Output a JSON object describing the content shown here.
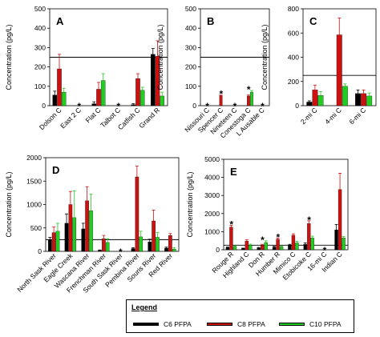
{
  "chart_data": [
    {
      "panel_label": "A",
      "type": "bar",
      "ylabel": "Concentration (pg/L)",
      "ylim": [
        0,
        500
      ],
      "yticks": [
        0,
        100,
        200,
        300,
        400,
        500
      ],
      "reference_line": 250,
      "categories": [
        "Dolson C",
        "East 2 C",
        "Flat C",
        "Talbot C",
        "Catfish C",
        "Grand R"
      ],
      "series": [
        {
          "name": "C6 PFPA",
          "color": "#000000",
          "values": [
            55,
            null,
            10,
            null,
            5,
            265
          ],
          "errors": [
            20,
            null,
            10,
            null,
            5,
            30
          ]
        },
        {
          "name": "C8 PFPA",
          "color": "#cc1111",
          "values": [
            190,
            null,
            85,
            null,
            140,
            255
          ],
          "errors": [
            75,
            null,
            35,
            null,
            25,
            80
          ]
        },
        {
          "name": "C10 PFPA",
          "color": "#22cc22",
          "values": [
            70,
            null,
            130,
            null,
            80,
            50
          ],
          "errors": [
            20,
            null,
            35,
            null,
            15,
            20
          ]
        }
      ],
      "asterisks": [
        "East 2 C",
        "Talbot C"
      ]
    },
    {
      "panel_label": "B",
      "type": "bar",
      "ylabel": "Concentration (pg/L)",
      "ylim": [
        0,
        500
      ],
      "yticks": [
        0,
        100,
        200,
        300,
        400,
        500
      ],
      "reference_line": 250,
      "categories": [
        "Nissouri C",
        "Spencer C",
        "Nineteen C",
        "Conestoga C",
        "L Ausable C"
      ],
      "series": [
        {
          "name": "C6 PFPA",
          "color": "#000000",
          "values": [
            null,
            0,
            null,
            0,
            null
          ],
          "errors": [
            null,
            0,
            null,
            0,
            null
          ]
        },
        {
          "name": "C8 PFPA",
          "color": "#cc1111",
          "values": [
            null,
            55,
            null,
            50,
            null
          ],
          "errors": [
            null,
            0,
            null,
            5,
            null
          ]
        },
        {
          "name": "C10 PFPA",
          "color": "#22cc22",
          "values": [
            null,
            0,
            null,
            70,
            null
          ],
          "errors": [
            null,
            0,
            null,
            8,
            null
          ]
        }
      ],
      "asterisks": [
        "Nissouri C",
        "Spencer C",
        "Nineteen C",
        "Conestoga C",
        "L Ausable C"
      ]
    },
    {
      "panel_label": "C",
      "type": "bar",
      "ylabel": "Concentration (pg/L)",
      "ylim": [
        0,
        800
      ],
      "yticks": [
        0,
        200,
        400,
        600,
        800
      ],
      "reference_line": 250,
      "categories": [
        "2-mi C",
        "4-mi C",
        "6-mi C"
      ],
      "series": [
        {
          "name": "C6 PFPA",
          "color": "#000000",
          "values": [
            30,
            0,
            100
          ],
          "errors": [
            10,
            0,
            30
          ]
        },
        {
          "name": "C8 PFPA",
          "color": "#cc1111",
          "values": [
            130,
            585,
            100
          ],
          "errors": [
            40,
            140,
            30
          ]
        },
        {
          "name": "C10 PFPA",
          "color": "#22cc22",
          "values": [
            85,
            160,
            80
          ],
          "errors": [
            30,
            20,
            25
          ]
        }
      ],
      "asterisks": []
    },
    {
      "panel_label": "D",
      "type": "bar",
      "ylabel": "Concentration (pg/L)",
      "ylim": [
        0,
        2000
      ],
      "yticks": [
        0,
        500,
        1000,
        1500,
        2000
      ],
      "reference_line": 250,
      "categories": [
        "North Sask River",
        "Eagle Creek",
        "Wascana River",
        "Frenchman River",
        "South Sask River",
        "Pembina River",
        "Souris River",
        "Red River"
      ],
      "series": [
        {
          "name": "C6 PFPA",
          "color": "#000000",
          "values": [
            240,
            600,
            480,
            20,
            null,
            60,
            200,
            70
          ],
          "errors": [
            60,
            200,
            120,
            10,
            null,
            20,
            60,
            20
          ]
        },
        {
          "name": "C8 PFPA",
          "color": "#cc1111",
          "values": [
            400,
            1000,
            1080,
            270,
            null,
            1590,
            650,
            340
          ],
          "errors": [
            120,
            280,
            300,
            70,
            null,
            230,
            230,
            40
          ]
        },
        {
          "name": "C10 PFPA",
          "color": "#22cc22",
          "values": [
            430,
            720,
            870,
            190,
            null,
            310,
            300,
            50
          ],
          "errors": [
            170,
            570,
            350,
            80,
            null,
            120,
            100,
            30
          ]
        }
      ],
      "asterisks": [
        "South Sask River"
      ]
    },
    {
      "panel_label": "E",
      "type": "bar",
      "ylabel": "Concentration (pg/L)",
      "ylim": [
        0,
        5000
      ],
      "yticks": [
        0,
        1000,
        2000,
        3000,
        4000,
        5000
      ],
      "reference_line": 250,
      "categories": [
        "Rouge R",
        "Highland C",
        "Don R",
        "Humber R",
        "Mimico C",
        "Etobicoke C",
        "16-mi C",
        "Indian C"
      ],
      "series": [
        {
          "name": "C6 PFPA",
          "color": "#000000",
          "values": [
            120,
            70,
            100,
            150,
            250,
            300,
            null,
            1100
          ],
          "errors": [
            30,
            20,
            30,
            40,
            50,
            80,
            null,
            300
          ]
        },
        {
          "name": "C8 PFPA",
          "color": "#cc1111",
          "values": [
            1250,
            480,
            250,
            580,
            800,
            1450,
            null,
            3330
          ],
          "errors": [
            100,
            80,
            50,
            60,
            80,
            150,
            null,
            900
          ]
        },
        {
          "name": "C10 PFPA",
          "color": "#22cc22",
          "values": [
            180,
            250,
            400,
            160,
            380,
            650,
            null,
            650
          ],
          "errors": [
            40,
            60,
            90,
            40,
            80,
            100,
            null,
            80
          ]
        }
      ],
      "asterisks": [
        "Rouge R",
        "Don R",
        "Humber R",
        "Etobicoke C",
        "16-mi C"
      ]
    }
  ],
  "legend": {
    "title": "Legend",
    "items": [
      {
        "label": "C6 PFPA",
        "color": "#000000"
      },
      {
        "label": "C8 PFPA",
        "color": "#cc1111"
      },
      {
        "label": "C10 PFPA",
        "color": "#22cc22"
      }
    ]
  }
}
